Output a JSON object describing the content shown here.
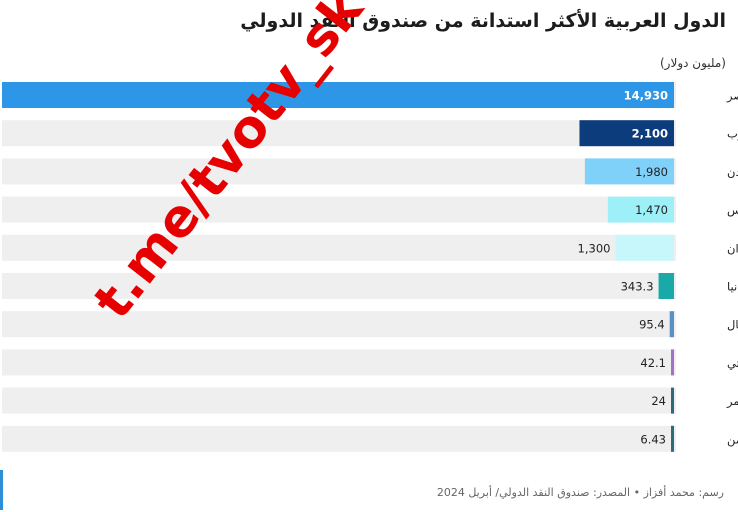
{
  "header": {
    "title": "الدول العربية الأكثر استدانة من صندوق النقد الدولي",
    "unit": "(مليون دولار)"
  },
  "footer": {
    "credit": "رسم: محمد أفزاز • المصدر: صندوق النقد الدولي/ أبريل 2024"
  },
  "watermark": {
    "text": "t.me/tvotv_sk"
  },
  "chart_data": {
    "type": "bar",
    "orientation": "horizontal",
    "title": "الدول العربية الأكثر استدانة من صندوق النقد الدولي",
    "unit": "(مليون دولار)",
    "xlim": [
      0,
      14930
    ],
    "categories": [
      "مصر",
      "المغرب",
      "الأردن",
      "تونس",
      "السودان",
      "موريتانيا",
      "الصومال",
      "جيبوتي",
      "جزر القمر",
      "اليمن"
    ],
    "values": [
      14930,
      2100,
      1980,
      1470,
      1300,
      343.3,
      95.4,
      42.1,
      24,
      6.43
    ],
    "value_labels": [
      "14,930",
      "2,100",
      "1,980",
      "1,470",
      "1,300",
      "343.3",
      "95.4",
      "42.1",
      "24",
      "6.43"
    ],
    "colors": [
      "#2e96e6",
      "#0d3c7c",
      "#7fd1fa",
      "#9ef0f8",
      "#c8f7fb",
      "#1aa9a9",
      "#5b8fc7",
      "#a56fc4",
      "#2d6b7a",
      "#2d6b7a"
    ],
    "track_color": "#efefef",
    "grid": false
  }
}
